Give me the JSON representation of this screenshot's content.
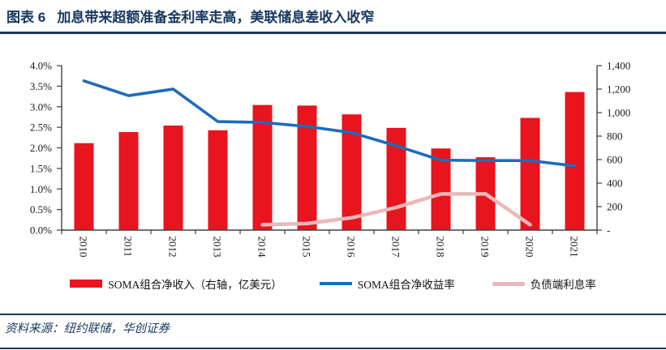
{
  "header": {
    "title": "图表 6   加息带来超额准备金利率走高，美联储息差收入收窄"
  },
  "source": {
    "label": "资料来源：纽约联储，华创证券"
  },
  "colors": {
    "navy": "#17375E",
    "red": "#E8141E",
    "blue": "#1E6CBA",
    "pink": "#EAB8B8",
    "axis": "#404040"
  },
  "chart_data": {
    "type": "combo",
    "title": "加息带来超额准备金利率走高，美联储息差收入收窄",
    "categories": [
      "2010",
      "2011",
      "2012",
      "2013",
      "2014",
      "2015",
      "2016",
      "2017",
      "2018",
      "2019",
      "2020",
      "2021"
    ],
    "left_axis": {
      "min": 0,
      "max": 4.0,
      "step": 0.5,
      "unit": "%",
      "tick_values": [
        0,
        0.5,
        1.0,
        1.5,
        2.0,
        2.5,
        3.0,
        3.5,
        4.0
      ],
      "tick_labels": [
        "0.0%",
        "0.5%",
        "1.0%",
        "1.5%",
        "2.0%",
        "2.5%",
        "3.0%",
        "3.5%",
        "4.0%"
      ]
    },
    "right_axis": {
      "min": 0,
      "max": 1400,
      "step": 200,
      "unit": "亿美元",
      "tick_values": [
        0,
        200,
        400,
        600,
        800,
        1000,
        1200,
        1400
      ],
      "tick_labels": [
        "-",
        "200",
        "400",
        "600",
        "800",
        "1,000",
        "1,200",
        "1,400"
      ]
    },
    "grid": false,
    "legend_position": "bottom",
    "series": [
      {
        "id": "soma-net-income-bars",
        "name": "SOMA组合净收入（右轴，亿美元）",
        "type": "bar",
        "axis": "right",
        "color": "red",
        "values": [
          740,
          835,
          890,
          850,
          1065,
          1060,
          985,
          870,
          695,
          620,
          955,
          1175
        ]
      },
      {
        "id": "soma-net-yield-line",
        "name": "SOMA组合净收益率",
        "type": "line",
        "axis": "left",
        "color": "blue",
        "stroke_width": 3.6,
        "values": [
          3.63,
          3.27,
          3.43,
          2.64,
          2.62,
          2.52,
          2.37,
          2.05,
          1.7,
          1.69,
          1.69,
          1.56
        ]
      },
      {
        "id": "liability-interest-rate-line",
        "name": "负债端利息率",
        "type": "line",
        "axis": "left",
        "color": "pink",
        "stroke_width": 4.5,
        "values": [
          null,
          null,
          null,
          null,
          0.13,
          0.16,
          0.3,
          0.55,
          0.88,
          0.88,
          0.13,
          null
        ]
      }
    ]
  }
}
